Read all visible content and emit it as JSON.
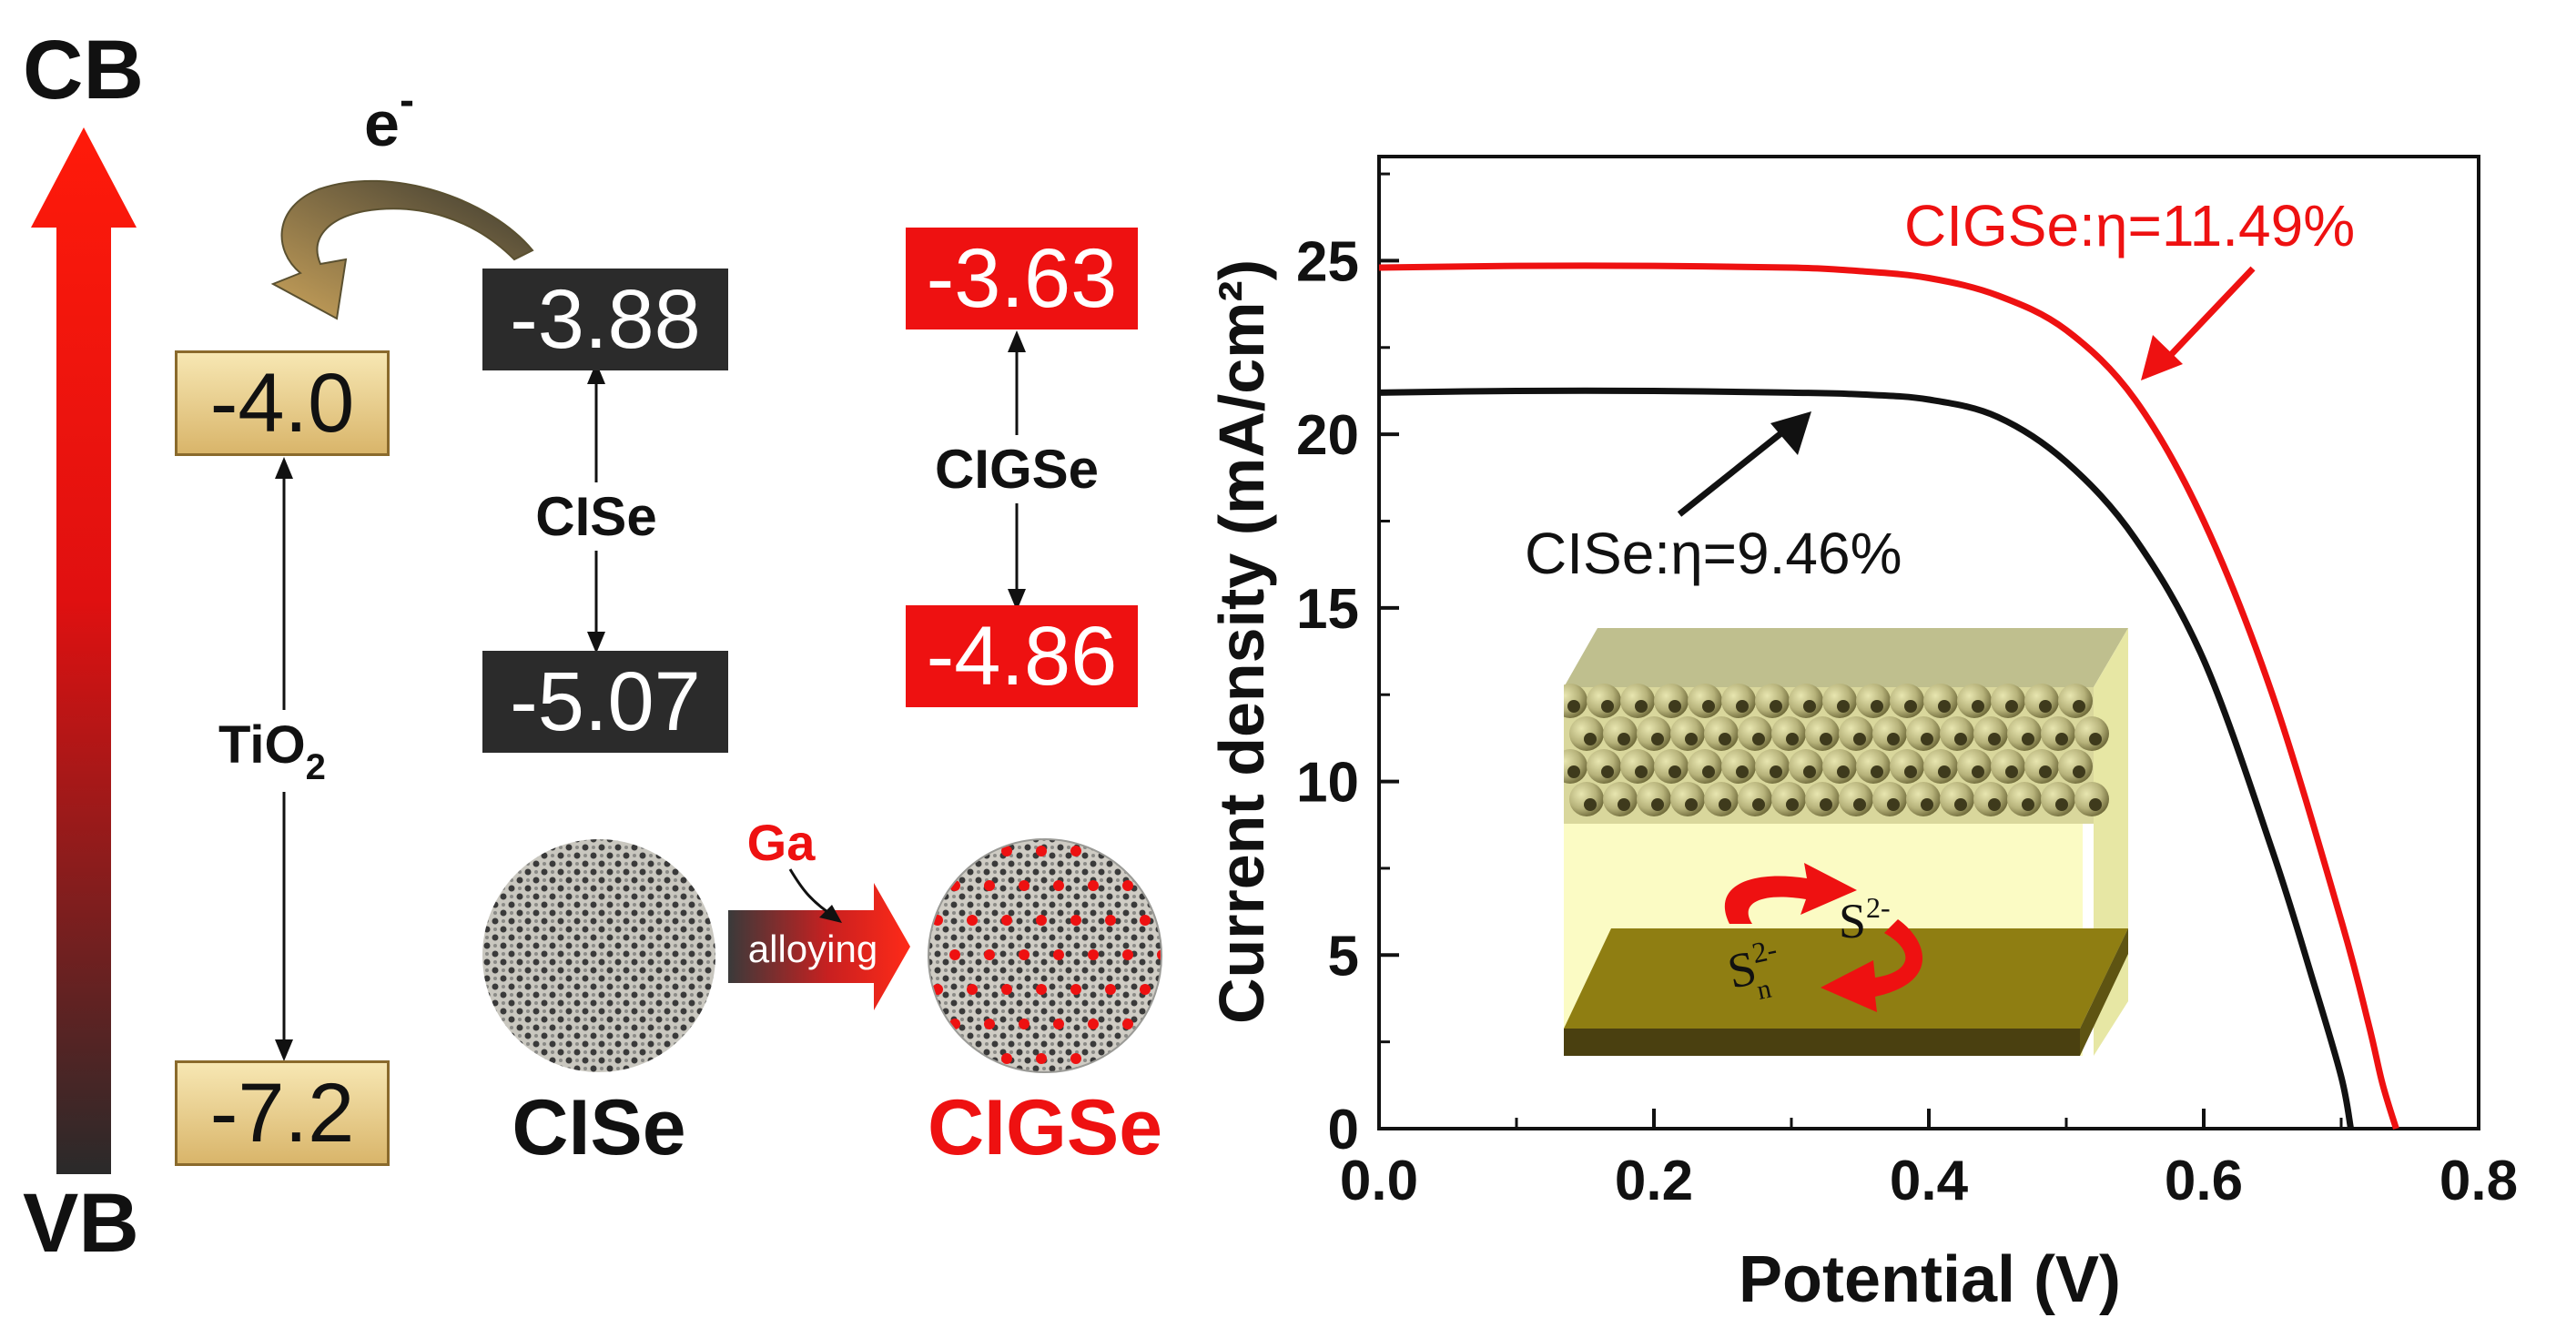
{
  "energy_diagram": {
    "axis_top": "CB",
    "axis_bottom": "VB",
    "electron_label": "e",
    "electron_charge": "-",
    "tio2_label": "TiO",
    "tio2_subscript": "2",
    "tio2_cb": "-4.0",
    "tio2_vb": "-7.2",
    "cise_label": "CISe",
    "cise_cb": "-3.88",
    "cise_vb": "-5.07",
    "cigse_label": "CIGSe",
    "cigse_cb": "-3.63",
    "cigse_vb": "-4.86"
  },
  "alloying": {
    "dopant_label": "Ga",
    "arrow_label": "alloying",
    "left_particle_label": "CISe",
    "right_particle_label": "CIGSe"
  },
  "inset": {
    "ion_label_1": "S",
    "ion_sup_1": "2-",
    "ion_label_2": "S",
    "ion_sup_2": "2-",
    "ion_sub_2": "n"
  },
  "colors": {
    "cigse": "#ee1111",
    "cise": "#111111",
    "tio2_box": "#e8cd8a"
  },
  "chart_data": {
    "type": "line",
    "title": "",
    "xlabel": "Potential (V)",
    "ylabel": "Current density (mA/cm²)",
    "xlim": [
      0.0,
      0.8
    ],
    "ylim": [
      0,
      28
    ],
    "xticks": [
      0.0,
      0.2,
      0.4,
      0.6,
      0.8
    ],
    "xtick_labels": [
      "0.0",
      "0.2",
      "0.4",
      "0.6",
      "0.8"
    ],
    "yticks": [
      0,
      5,
      10,
      15,
      20,
      25
    ],
    "ytick_labels": [
      "0",
      "5",
      "10",
      "15",
      "20",
      "25"
    ],
    "grid": false,
    "series": [
      {
        "name": "CIGSe",
        "annotation": "CIGSe:η=11.49%",
        "color": "#ee1111",
        "x": [
          0.0,
          0.1,
          0.2,
          0.3,
          0.35,
          0.4,
          0.45,
          0.5,
          0.55,
          0.6,
          0.65,
          0.7,
          0.72,
          0.73,
          0.74
        ],
        "y": [
          24.8,
          24.85,
          24.85,
          24.8,
          24.7,
          24.5,
          24.0,
          23.0,
          21.0,
          17.5,
          12.5,
          6.0,
          3.0,
          1.3,
          0.0
        ]
      },
      {
        "name": "CISe",
        "annotation": "CISe:η=9.46%",
        "color": "#111111",
        "x": [
          0.0,
          0.1,
          0.2,
          0.3,
          0.35,
          0.4,
          0.45,
          0.5,
          0.55,
          0.6,
          0.65,
          0.68,
          0.7,
          0.707
        ],
        "y": [
          21.2,
          21.25,
          21.25,
          21.2,
          21.15,
          21.0,
          20.5,
          19.2,
          17.0,
          13.5,
          8.0,
          4.2,
          1.5,
          0.0
        ]
      }
    ]
  }
}
